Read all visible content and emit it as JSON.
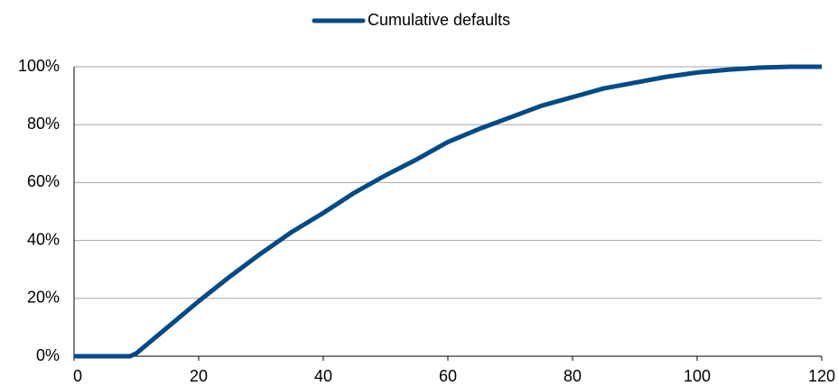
{
  "chart_data": {
    "type": "line",
    "x": [
      0,
      5,
      9,
      10,
      15,
      20,
      25,
      30,
      35,
      40,
      45,
      50,
      55,
      60,
      65,
      70,
      75,
      80,
      85,
      90,
      95,
      100,
      105,
      110,
      115,
      120
    ],
    "series": [
      {
        "name": "Cumulative defaults",
        "color": "#004b87",
        "values": [
          0,
          0,
          0,
          1,
          10,
          19,
          27.5,
          35.5,
          43,
          49.5,
          56.5,
          62.5,
          68,
          74,
          78.5,
          82.5,
          86.5,
          89.5,
          92.5,
          94.5,
          96.5,
          98,
          99,
          99.7,
          100,
          100
        ]
      }
    ],
    "xlim": [
      0,
      120
    ],
    "xticks": [
      0,
      20,
      40,
      60,
      80,
      100,
      120
    ],
    "ylim": [
      0,
      100
    ],
    "yticks": [
      {
        "value": 0,
        "label": "0%"
      },
      {
        "value": 20,
        "label": "20%"
      },
      {
        "value": 40,
        "label": "40%"
      },
      {
        "value": 60,
        "label": "60%"
      },
      {
        "value": 80,
        "label": "80%"
      },
      {
        "value": 100,
        "label": "100%"
      }
    ],
    "grid": true,
    "legend": "top"
  }
}
